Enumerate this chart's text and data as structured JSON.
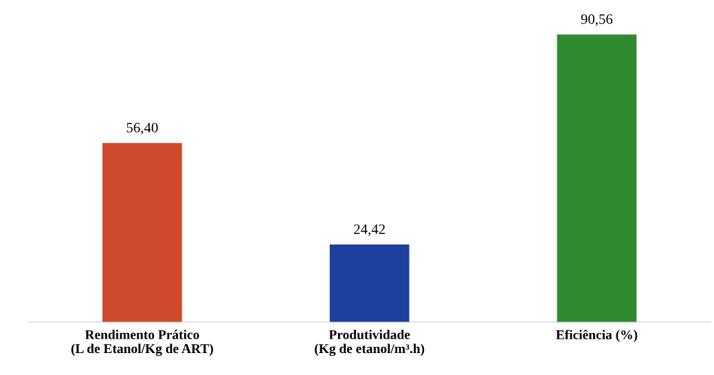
{
  "chart_data": {
    "type": "bar",
    "categories": [
      "Rendimento Prático\n(L de Etanol/Kg de ART)",
      "Produtividade\n(Kg de etanol/m³.h)",
      "Eficiência (%)"
    ],
    "values": [
      56.4,
      24.42,
      90.56
    ],
    "colors": [
      "#cf4a2c",
      "#1d3f9e",
      "#2f8a2f"
    ],
    "value_labels": [
      "56,40",
      "24,42",
      "90,56"
    ],
    "tick_labels": "x",
    "grid": false,
    "legend": false
  }
}
